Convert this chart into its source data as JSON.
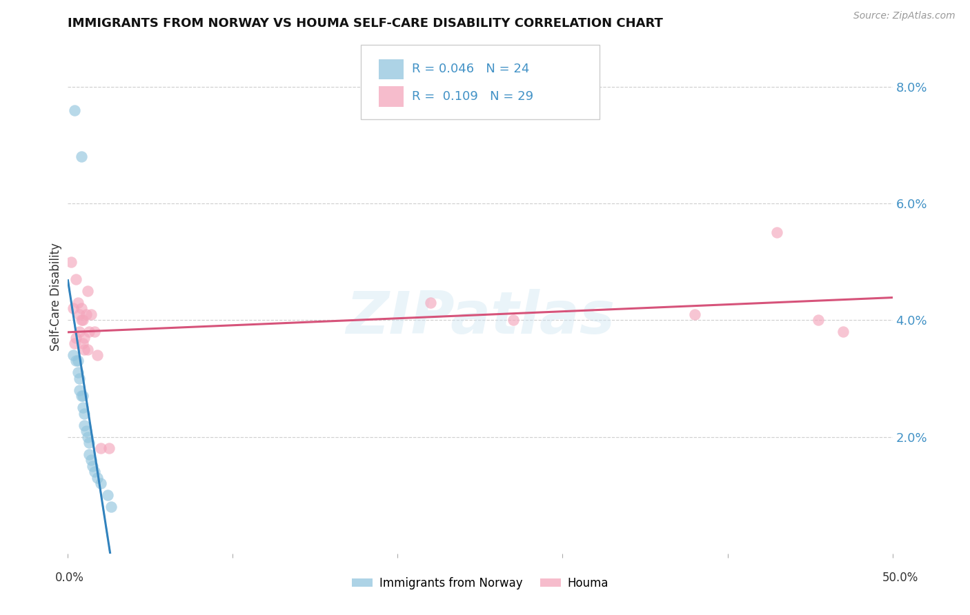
{
  "title": "IMMIGRANTS FROM NORWAY VS HOUMA SELF-CARE DISABILITY CORRELATION CHART",
  "source": "Source: ZipAtlas.com",
  "ylabel": "Self-Care Disability",
  "r1": "0.046",
  "n1": "24",
  "r2": "0.109",
  "n2": "29",
  "legend_label1": "Immigrants from Norway",
  "legend_label2": "Houma",
  "color_blue": "#92c5de",
  "color_pink": "#f4a6bc",
  "color_blue_line": "#3182bd",
  "color_pink_line": "#d6537a",
  "color_blue_dashed": "#a8cfe0",
  "color_axis_blue": "#4292c6",
  "xlim": [
    0.0,
    0.5
  ],
  "ylim": [
    0.0,
    0.088
  ],
  "yticks": [
    0.02,
    0.04,
    0.06,
    0.08
  ],
  "ytick_labels": [
    "2.0%",
    "4.0%",
    "6.0%",
    "8.0%"
  ],
  "xticks": [
    0.0,
    0.1,
    0.2,
    0.3,
    0.4,
    0.5
  ],
  "norway_x": [
    0.004,
    0.008,
    0.003,
    0.005,
    0.006,
    0.006,
    0.007,
    0.007,
    0.008,
    0.009,
    0.009,
    0.01,
    0.01,
    0.011,
    0.012,
    0.013,
    0.013,
    0.014,
    0.015,
    0.016,
    0.018,
    0.02,
    0.024,
    0.026
  ],
  "norway_y": [
    0.076,
    0.068,
    0.034,
    0.033,
    0.033,
    0.031,
    0.03,
    0.028,
    0.027,
    0.027,
    0.025,
    0.024,
    0.022,
    0.021,
    0.02,
    0.019,
    0.017,
    0.016,
    0.015,
    0.014,
    0.013,
    0.012,
    0.01,
    0.008
  ],
  "houma_x": [
    0.002,
    0.003,
    0.004,
    0.005,
    0.005,
    0.006,
    0.007,
    0.007,
    0.008,
    0.008,
    0.009,
    0.009,
    0.01,
    0.01,
    0.011,
    0.012,
    0.012,
    0.013,
    0.014,
    0.016,
    0.018,
    0.02,
    0.025,
    0.22,
    0.27,
    0.38,
    0.43,
    0.455,
    0.47
  ],
  "houma_y": [
    0.05,
    0.042,
    0.036,
    0.047,
    0.037,
    0.043,
    0.038,
    0.041,
    0.04,
    0.042,
    0.04,
    0.036,
    0.035,
    0.037,
    0.041,
    0.045,
    0.035,
    0.038,
    0.041,
    0.038,
    0.034,
    0.018,
    0.018,
    0.043,
    0.04,
    0.041,
    0.055,
    0.04,
    0.038
  ],
  "watermark": "ZIPatlas",
  "bg": "#ffffff",
  "grid_color": "#d0d0d0",
  "title_fontsize": 13,
  "source_color": "#999999",
  "axis_label_color": "#333333"
}
